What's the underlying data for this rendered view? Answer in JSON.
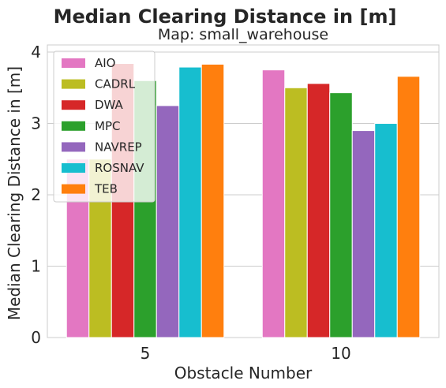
{
  "chart_data": {
    "type": "bar",
    "title": "Median Clearing Distance in [m]",
    "subtitle": "Map: small_warehouse",
    "xlabel": "Obstacle Number",
    "ylabel": "Median Clearing Distance in [m]",
    "categories": [
      "5",
      "10"
    ],
    "ylim": [
      0,
      4.1
    ],
    "yticks": [
      "0",
      "1",
      "2",
      "3",
      "4"
    ],
    "grid": true,
    "legend_position": "upper-left",
    "series": [
      {
        "name": "AIO",
        "color": "#e377c2",
        "values": [
          2.5,
          3.75
        ]
      },
      {
        "name": "CADRL",
        "color": "#bcbd22",
        "values": [
          2.5,
          3.5
        ]
      },
      {
        "name": "DWA",
        "color": "#d62728",
        "values": [
          3.84,
          3.56
        ]
      },
      {
        "name": "MPC",
        "color": "#2ca02c",
        "values": [
          3.6,
          3.43
        ]
      },
      {
        "name": "NAVREP",
        "color": "#9467bd",
        "values": [
          3.25,
          2.9
        ]
      },
      {
        "name": "ROSNAV",
        "color": "#17becf",
        "values": [
          3.79,
          3.0
        ]
      },
      {
        "name": "TEB",
        "color": "#ff7f0e",
        "values": [
          3.83,
          3.66
        ]
      }
    ]
  }
}
